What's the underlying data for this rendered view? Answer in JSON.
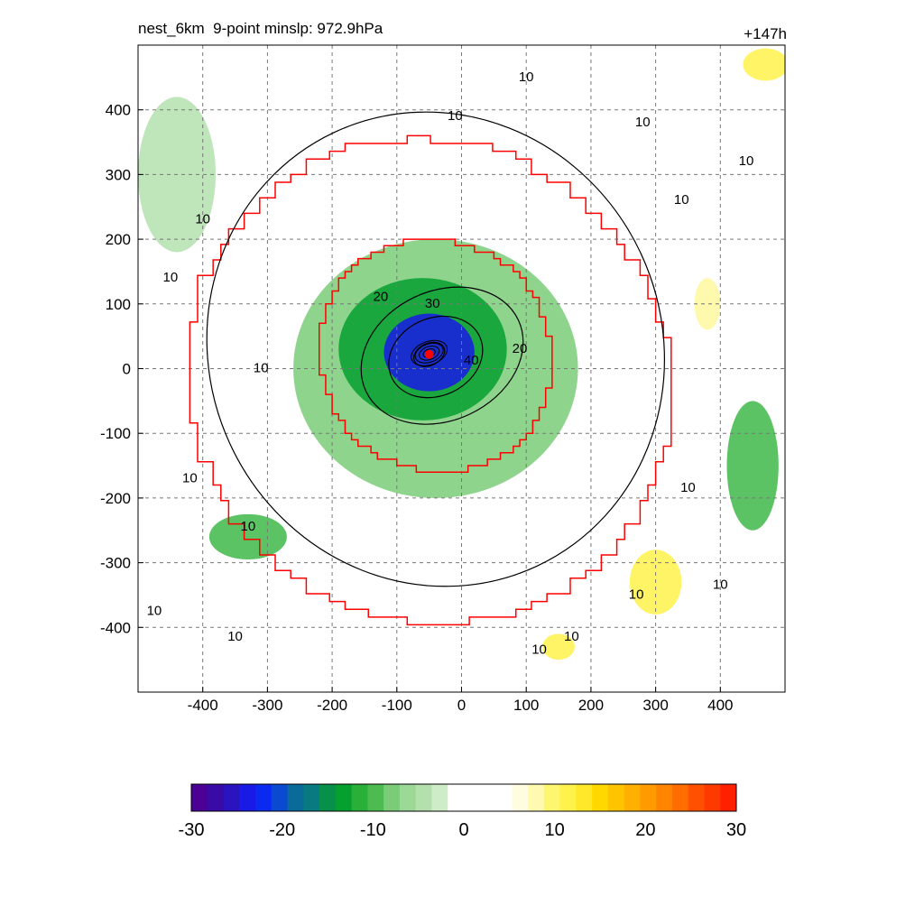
{
  "figure": {
    "title_left": "nest_6km  9-point minslp: 972.9hPa",
    "title_right": "+147h"
  },
  "chart_data": {
    "type": "heatmap",
    "title": "nest_6km  9-point minslp: 972.9hPa",
    "time_label": "+147h",
    "xlabel": "",
    "ylabel": "",
    "xlim": [
      -500,
      500
    ],
    "ylim": [
      -500,
      500
    ],
    "x_ticks": [
      -400,
      -300,
      -200,
      -100,
      0,
      100,
      200,
      300,
      400
    ],
    "y_ticks": [
      -400,
      -300,
      -200,
      -100,
      0,
      100,
      200,
      300,
      400
    ],
    "grid": true,
    "storm_center": {
      "x": -50,
      "y": 22
    },
    "shaded_field": {
      "description_levels": [
        -30,
        -20,
        -10,
        0,
        10,
        20,
        30
      ],
      "features": [
        {
          "x": -50,
          "y": 25,
          "rx": 70,
          "ry": 60,
          "value": -22
        },
        {
          "x": -60,
          "y": 30,
          "rx": 130,
          "ry": 110,
          "value": -12
        },
        {
          "x": -40,
          "y": 0,
          "rx": 220,
          "ry": 200,
          "value": -6
        },
        {
          "x": -330,
          "y": -260,
          "rx": 60,
          "ry": 35,
          "value": -8
        },
        {
          "x": 450,
          "y": -150,
          "rx": 40,
          "ry": 100,
          "value": -10
        },
        {
          "x": -440,
          "y": 300,
          "rx": 60,
          "ry": 120,
          "value": -4
        },
        {
          "x": 300,
          "y": -330,
          "rx": 40,
          "ry": 50,
          "value": 6
        },
        {
          "x": 470,
          "y": 470,
          "rx": 35,
          "ry": 25,
          "value": 7
        },
        {
          "x": 150,
          "y": -430,
          "rx": 25,
          "ry": 20,
          "value": 6
        },
        {
          "x": 380,
          "y": 100,
          "rx": 20,
          "ry": 40,
          "value": 3
        }
      ]
    },
    "contours": [
      {
        "label": "40",
        "x": -50,
        "y": 22,
        "rx": 25,
        "ry": 17
      },
      {
        "label": "30",
        "x": -40,
        "y": 18,
        "rx": 75,
        "ry": 60
      },
      {
        "label": "20",
        "x": -30,
        "y": 20,
        "rx": 130,
        "ry": 100
      },
      {
        "label": "10",
        "x": -40,
        "y": 30,
        "rx": 350,
        "ry": 370
      }
    ],
    "contour_labels": [
      {
        "text": "10",
        "x": 100,
        "y": 450
      },
      {
        "text": "10",
        "x": -10,
        "y": 390
      },
      {
        "text": "10",
        "x": 280,
        "y": 380
      },
      {
        "text": "10",
        "x": 440,
        "y": 320
      },
      {
        "text": "10",
        "x": 340,
        "y": 260
      },
      {
        "text": "10",
        "x": -400,
        "y": 230
      },
      {
        "text": "10",
        "x": -450,
        "y": 140
      },
      {
        "text": "10",
        "x": -310,
        "y": 0
      },
      {
        "text": "10",
        "x": -420,
        "y": -170
      },
      {
        "text": "10",
        "x": -330,
        "y": -245
      },
      {
        "text": "10",
        "x": -475,
        "y": -375
      },
      {
        "text": "10",
        "x": -350,
        "y": -415
      },
      {
        "text": "10",
        "x": 350,
        "y": -185
      },
      {
        "text": "10",
        "x": 400,
        "y": -335
      },
      {
        "text": "10",
        "x": 270,
        "y": -350
      },
      {
        "text": "10",
        "x": 120,
        "y": -435
      },
      {
        "text": "10",
        "x": 170,
        "y": -415
      },
      {
        "text": "20",
        "x": -125,
        "y": 110
      },
      {
        "text": "30",
        "x": -45,
        "y": 100
      },
      {
        "text": "20",
        "x": 90,
        "y": 30
      },
      {
        "text": "40",
        "x": 15,
        "y": 12
      }
    ],
    "colorbar": {
      "min": -30,
      "max": 30,
      "tick_labels": [
        "-30",
        "-20",
        "-10",
        "0",
        "10",
        "20",
        "30"
      ]
    },
    "colors": {
      "boundary": "#ff0000",
      "contour": "#000000",
      "center_marker": "#ff0000"
    }
  }
}
